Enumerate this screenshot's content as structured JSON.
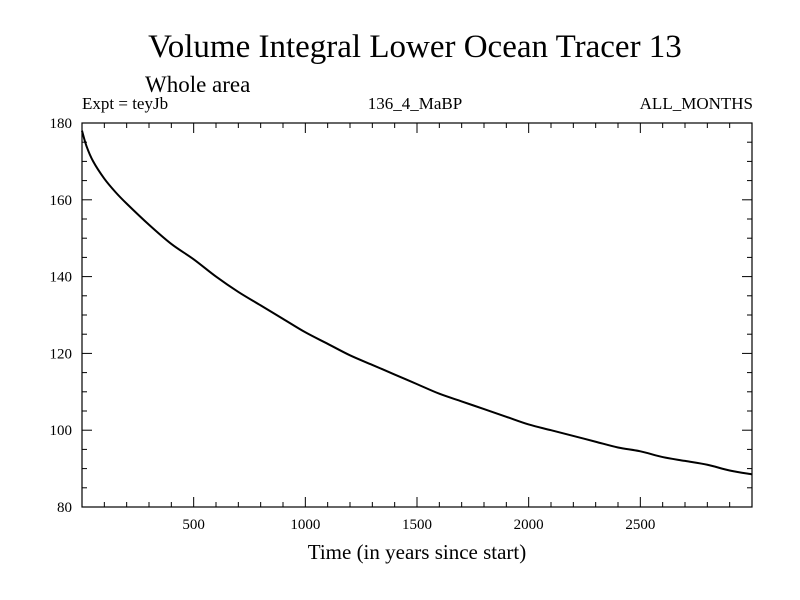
{
  "chart_data": {
    "type": "line",
    "title": "Volume Integral Lower Ocean Tracer 13",
    "subtitle": "Whole area",
    "annotations": {
      "left": "Expt = teyJb",
      "center": "136_4_MaBP",
      "right": "ALL_MONTHS"
    },
    "xlabel": "Time (in years since start)",
    "ylabel": "",
    "xlim": [
      0,
      3000
    ],
    "ylim": [
      80,
      180
    ],
    "x_ticks": [
      500,
      1000,
      1500,
      2000,
      2500
    ],
    "x_tick_labels": [
      "500",
      "1000",
      "1500",
      "2000",
      "2500"
    ],
    "y_ticks": [
      80,
      100,
      120,
      140,
      160,
      180
    ],
    "y_tick_labels": [
      "80",
      "100",
      "120",
      "140",
      "160",
      "180"
    ],
    "x_minor_step": 100,
    "y_minor_step": 5,
    "grid": false,
    "series": [
      {
        "name": "Lower Ocean Tracer 13",
        "color": "#000000",
        "x": [
          0,
          20,
          50,
          100,
          150,
          200,
          300,
          400,
          500,
          600,
          700,
          800,
          900,
          1000,
          1100,
          1200,
          1300,
          1400,
          1500,
          1600,
          1700,
          1800,
          1900,
          2000,
          2100,
          2200,
          2300,
          2400,
          2500,
          2600,
          2700,
          2800,
          2900,
          3000
        ],
        "y": [
          178,
          174,
          170,
          165.5,
          162,
          159,
          153.5,
          148.5,
          144.5,
          140,
          136,
          132.5,
          129,
          125.5,
          122.5,
          119.5,
          117,
          114.5,
          112,
          109.5,
          107.5,
          105.5,
          103.5,
          101.5,
          100,
          98.5,
          97,
          95.5,
          94.5,
          93,
          92,
          91,
          89.5,
          88.5
        ]
      }
    ]
  }
}
